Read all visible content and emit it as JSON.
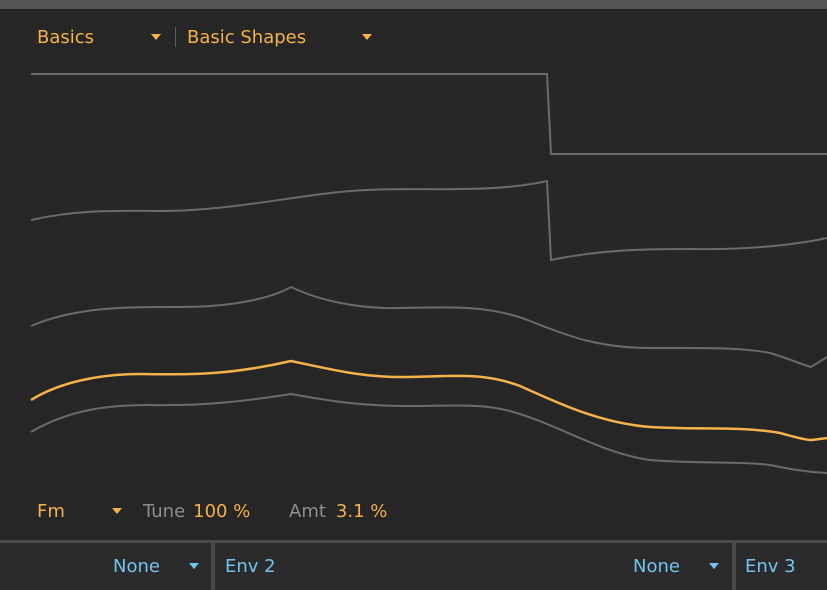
{
  "header": {
    "category": {
      "label": "Basics",
      "icon": "chevron-down-icon"
    },
    "preset": {
      "label": "Basic Shapes",
      "icon": "chevron-down-icon"
    }
  },
  "waveforms": {
    "count": 5,
    "active_color": "#f6b24a",
    "inactive_color": "#6a6a6a"
  },
  "footer": {
    "mode": {
      "label": "Fm",
      "icon": "chevron-down-icon"
    },
    "tune": {
      "label": "Tune",
      "value": "100 %"
    },
    "amt": {
      "label": "Amt",
      "value": "3.1 %"
    }
  },
  "bottom": {
    "mod1": {
      "source": "None",
      "target": "Env 2"
    },
    "mod2": {
      "source": "None",
      "target": "Env 3"
    }
  },
  "colors": {
    "accent": "#f6b24a",
    "mod_blue": "#73c4ef",
    "background": "#262626"
  }
}
